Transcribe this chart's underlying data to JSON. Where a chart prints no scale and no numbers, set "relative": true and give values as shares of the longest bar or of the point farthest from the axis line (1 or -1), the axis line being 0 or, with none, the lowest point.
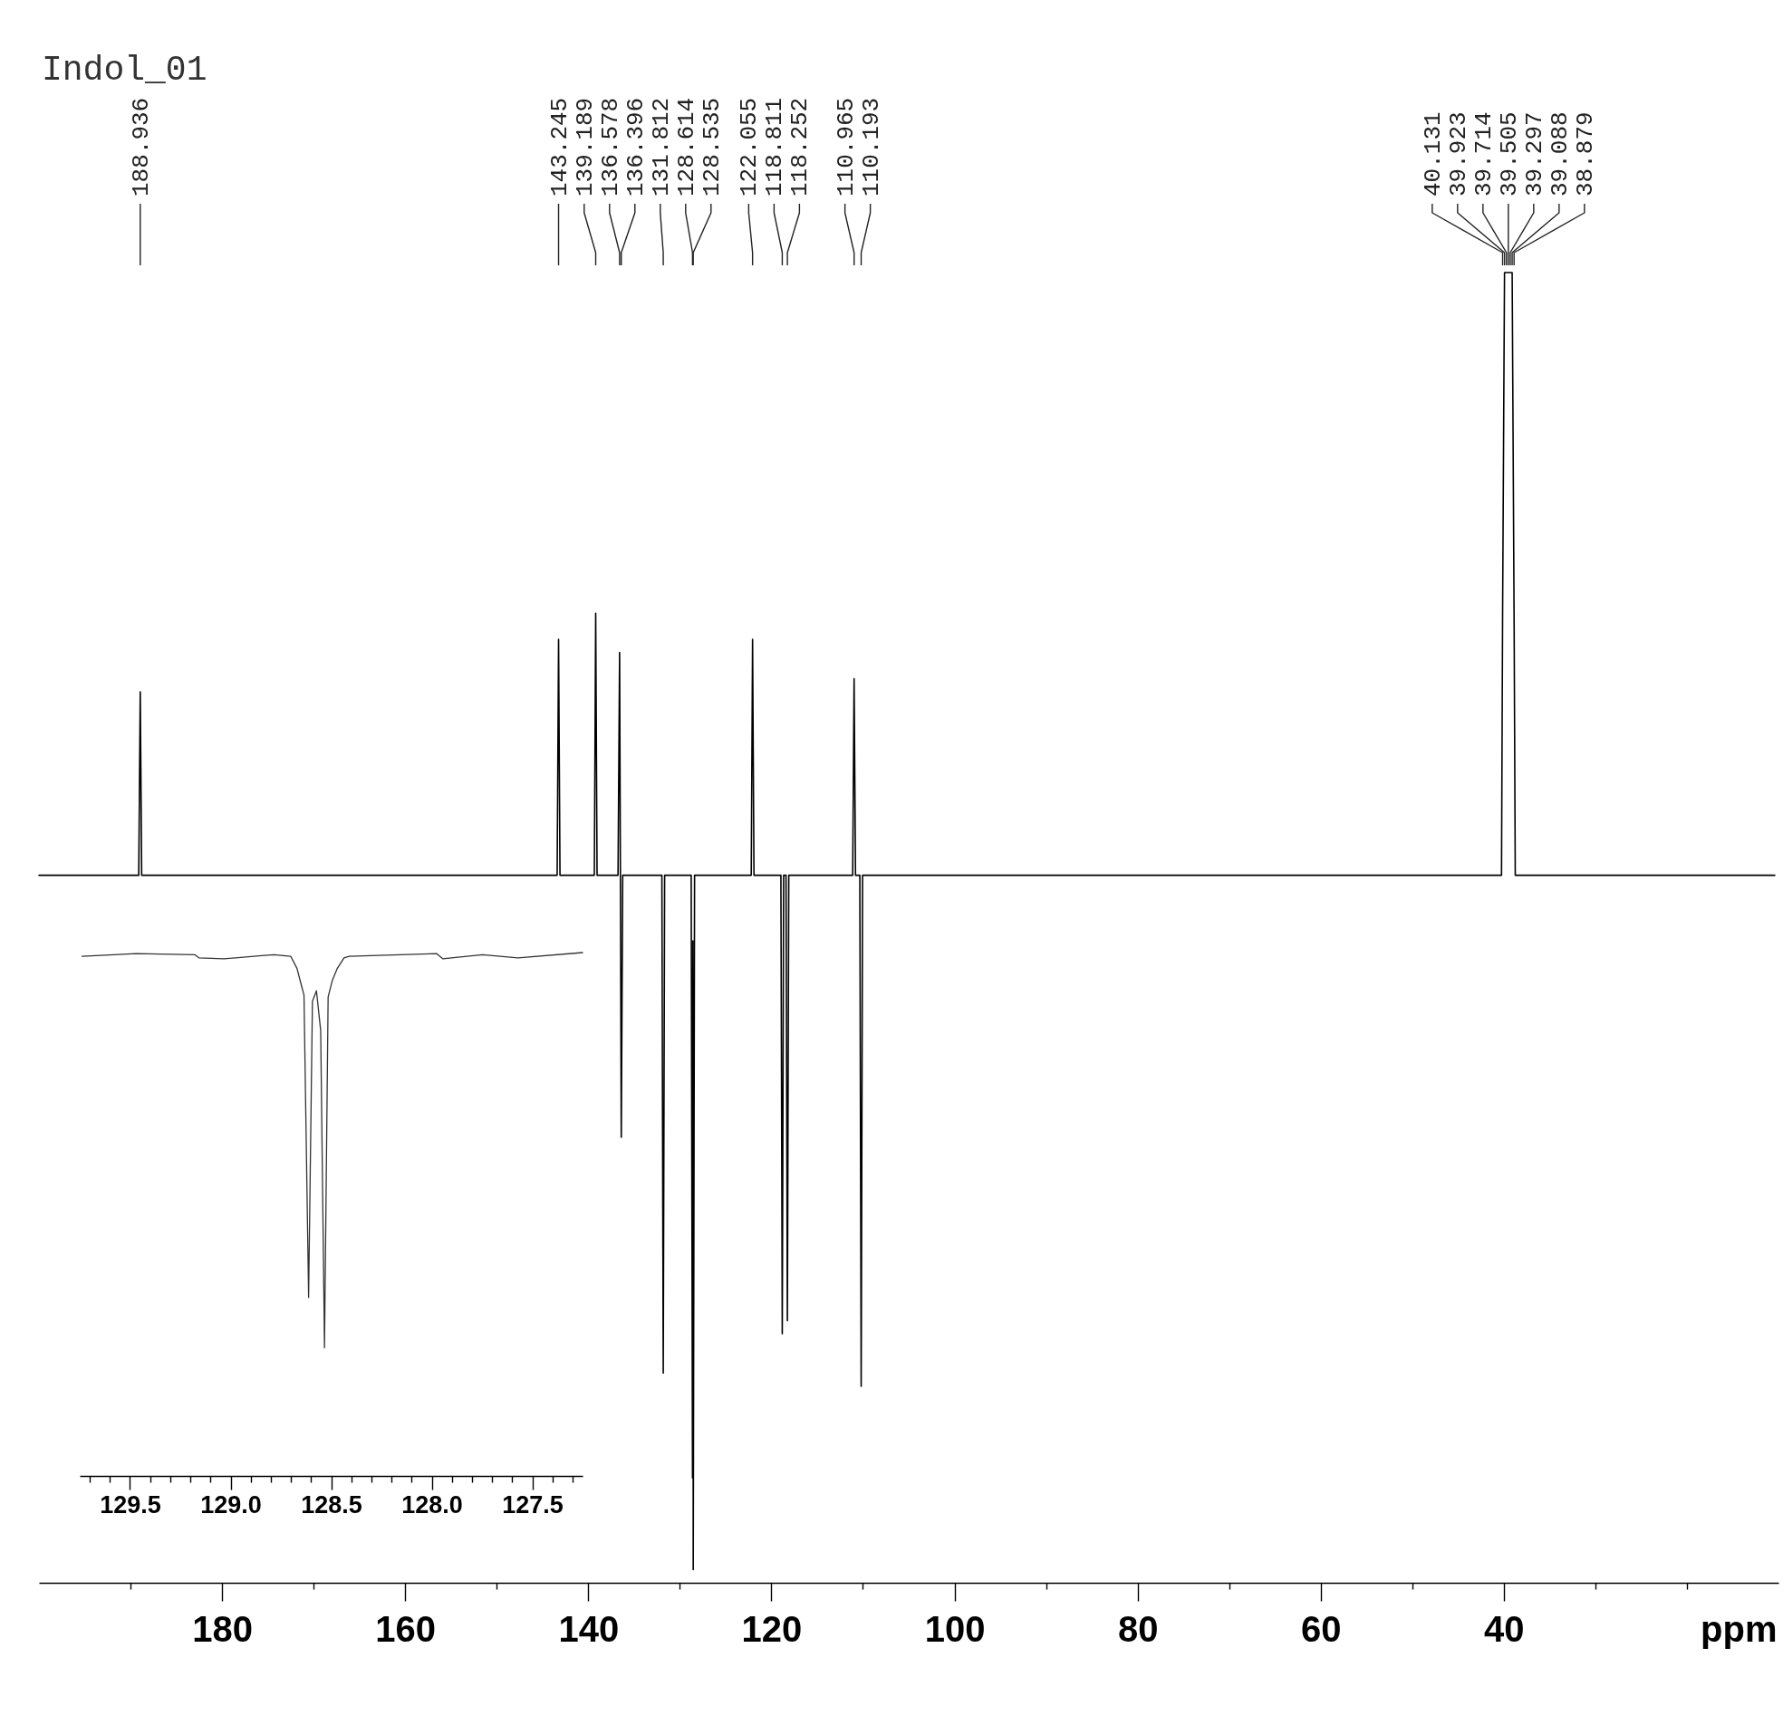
{
  "chart_data": [
    {
      "type": "line",
      "title": "Indol_01",
      "xlabel": "ppm",
      "relative": true,
      "x": [
        200,
        189.1,
        188.936,
        188.78,
        143.4,
        143.245,
        143.09,
        139.34,
        139.189,
        139.04,
        136.75,
        136.578,
        136.49,
        136.396,
        136.24,
        131.96,
        131.812,
        131.66,
        128.76,
        128.614,
        128.575,
        128.535,
        128.39,
        122.2,
        122.055,
        121.9,
        118.96,
        118.811,
        118.66,
        118.4,
        118.252,
        118.1,
        111.12,
        110.965,
        110.81,
        110.34,
        110.193,
        110.04,
        40.25,
        40.131,
        39.923,
        39.714,
        39.505,
        39.297,
        39.088,
        38.879,
        38.75,
        10.4
      ],
      "series": [
        {
          "color": "#000000",
          "values": [
            0.54,
            0.54,
            0.68,
            0.54,
            0.54,
            0.72,
            0.54,
            0.54,
            0.74,
            0.54,
            0.54,
            0.71,
            0.54,
            0.34,
            0.54,
            0.54,
            0.16,
            0.54,
            0.54,
            0.08,
            0.49,
            0.01,
            0.54,
            0.54,
            0.72,
            0.54,
            0.54,
            0.19,
            0.54,
            0.54,
            0.2,
            0.54,
            0.54,
            0.69,
            0.54,
            0.54,
            0.15,
            0.54,
            0.54,
            0.74,
            1,
            1,
            1,
            1,
            1,
            0.74,
            0.54,
            0.54
          ]
        }
      ],
      "xlim": [
        200,
        10
      ],
      "xticks": [
        {
          "value": 190,
          "label": null
        },
        180,
        {
          "value": 170,
          "label": null
        },
        160,
        {
          "value": 150,
          "label": null
        },
        140,
        {
          "value": 130,
          "label": null
        },
        120,
        {
          "value": 110,
          "label": null
        },
        100,
        {
          "value": 90,
          "label": null
        },
        80,
        {
          "value": 70,
          "label": null
        },
        60,
        {
          "value": 50,
          "label": null
        },
        40,
        {
          "value": 30,
          "label": null
        },
        {
          "value": 20,
          "label": null
        }
      ],
      "annotations": [
        {
          "text": "188.936",
          "x": 188.936
        },
        {
          "text": "143.245",
          "x": 143.245
        },
        {
          "text": "139.189",
          "x": 139.189
        },
        {
          "text": "136.578",
          "x": 136.578
        },
        {
          "text": "136.396",
          "x": 136.396
        },
        {
          "text": "131.812",
          "x": 131.812
        },
        {
          "text": "128.614",
          "x": 128.614
        },
        {
          "text": "128.535",
          "x": 128.535
        },
        {
          "text": "122.055",
          "x": 122.055
        },
        {
          "text": "118.811",
          "x": 118.811
        },
        {
          "text": "118.252",
          "x": 118.252
        },
        {
          "text": "110.965",
          "x": 110.965
        },
        {
          "text": "110.193",
          "x": 110.193
        },
        {
          "text": "40.131",
          "x": 40.131
        },
        {
          "text": "39.923",
          "x": 39.923
        },
        {
          "text": "39.714",
          "x": 39.714
        },
        {
          "text": "39.505",
          "x": 39.505
        },
        {
          "text": "39.297",
          "x": 39.297
        },
        {
          "text": "39.088",
          "x": 39.088
        },
        {
          "text": "38.879",
          "x": 38.879
        }
      ]
    },
    {
      "type": "line",
      "relative": true,
      "x": [
        129.739,
        129.469,
        129.178,
        129.158,
        129.033,
        128.846,
        128.784,
        128.701,
        128.67,
        128.649,
        128.635,
        128.612,
        128.593,
        128.573,
        128.552,
        128.533,
        128.515,
        128.494,
        128.469,
        128.436,
        128.411,
        127.975,
        127.944,
        127.747,
        127.571,
        127.25
      ],
      "series": [
        {
          "color": "#333333",
          "values": [
            0.993,
            0.998,
            0.996,
            0.99,
            0.988,
            0.994,
            0.996,
            0.993,
            0.97,
            0.939,
            0.919,
            0.341,
            0.907,
            0.927,
            0.851,
            0.245,
            0.915,
            0.947,
            0.97,
            0.99,
            0.993,
            0.998,
            0.988,
            0.996,
            0.99,
            1
          ]
        }
      ],
      "xlim": [
        129.75,
        127.25
      ],
      "xticks": [
        {
          "value": 129.7,
          "label": null
        },
        {
          "value": 129.6,
          "label": null
        },
        129.5,
        {
          "value": 129.4,
          "label": null
        },
        {
          "value": 129.3,
          "label": null
        },
        {
          "value": 129.2,
          "label": null
        },
        {
          "value": 129.1,
          "label": null
        },
        {
          "value": 129,
          "label": "129.0"
        },
        {
          "value": 128.9,
          "label": null
        },
        {
          "value": 128.8,
          "label": null
        },
        {
          "value": 128.7,
          "label": null
        },
        {
          "value": 128.6,
          "label": null
        },
        128.5,
        {
          "value": 128.4,
          "label": null
        },
        {
          "value": 128.3,
          "label": null
        },
        {
          "value": 128.2,
          "label": null
        },
        {
          "value": 128.1,
          "label": null
        },
        {
          "value": 128,
          "label": "128.0"
        },
        {
          "value": 127.9,
          "label": null
        },
        {
          "value": 127.8,
          "label": null
        },
        {
          "value": 127.7,
          "label": null
        },
        {
          "value": 127.6,
          "label": null
        },
        127.5,
        {
          "value": 127.4,
          "label": null
        },
        {
          "value": 127.3,
          "label": null
        }
      ]
    }
  ]
}
